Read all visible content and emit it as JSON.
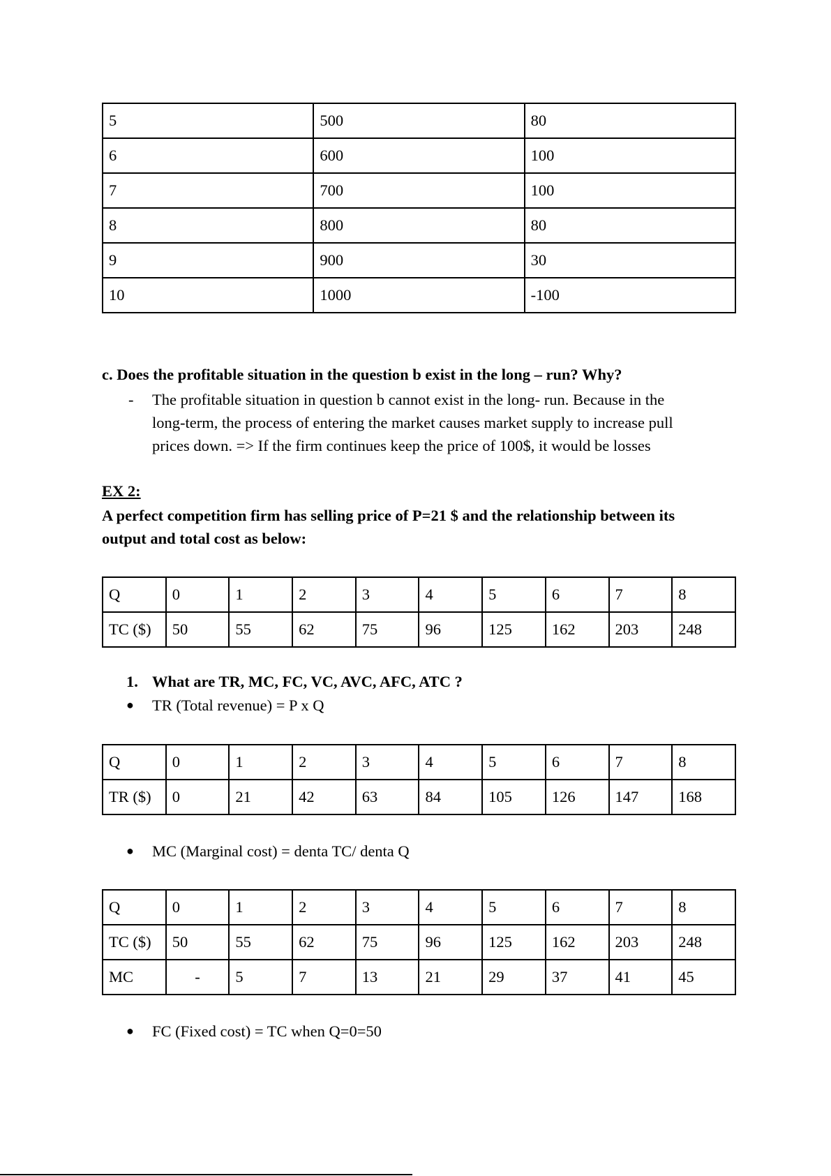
{
  "table_profit": {
    "rows": [
      [
        "5",
        "500",
        "80"
      ],
      [
        "6",
        "600",
        "100"
      ],
      [
        "7",
        "700",
        "100"
      ],
      [
        "8",
        "800",
        "80"
      ],
      [
        "9",
        "900",
        "30"
      ],
      [
        "10",
        "1000",
        "-100"
      ]
    ]
  },
  "question_c": {
    "heading": "c. Does the profitable situation in the question b exist in the long – run? Why?",
    "bullet": "-",
    "lines": [
      "The profitable situation in question b cannot exist in the long- run. Because in the",
      "long-term, the process of entering the market causes market supply to increase pull",
      "prices down. => If the firm continues keep the price of 100$, it would be losses"
    ]
  },
  "ex2": {
    "title": "EX 2:",
    "statement_lines": [
      "A perfect competition firm has selling price of P=21 $ and the relationship between its",
      "output and total cost as below:"
    ]
  },
  "table_tc": {
    "rows": [
      [
        "Q",
        "0",
        "1",
        "2",
        "3",
        "4",
        "5",
        "6",
        "7",
        "8"
      ],
      [
        "TC ($)",
        "50",
        "55",
        "62",
        "75",
        "96",
        "125",
        "162",
        "203",
        "248"
      ]
    ]
  },
  "question_1": {
    "number": "1.",
    "text": "What are TR, MC, FC, VC, AVC, AFC, ATC ?"
  },
  "bullets": {
    "symbol": "●",
    "tr": "TR (Total revenue) = P x Q",
    "mc": "MC (Marginal cost) = denta TC/ denta Q",
    "fc": "FC (Fixed cost) = TC when Q=0=50"
  },
  "table_tr": {
    "rows": [
      [
        "Q",
        "0",
        "1",
        "2",
        "3",
        "4",
        "5",
        "6",
        "7",
        "8"
      ],
      [
        "TR ($)",
        "0",
        "21",
        "42",
        "63",
        "84",
        "105",
        "126",
        "147",
        "168"
      ]
    ]
  },
  "table_mc": {
    "rows": [
      [
        "Q",
        "0",
        "1",
        "2",
        "3",
        "4",
        "5",
        "6",
        "7",
        "8"
      ],
      [
        "TC ($)",
        "50",
        "55",
        "62",
        "75",
        "96",
        "125",
        "162",
        "203",
        "248"
      ],
      [
        "MC",
        "-",
        "5",
        "7",
        "13",
        "21",
        "29",
        "37",
        "41",
        "45"
      ]
    ]
  }
}
